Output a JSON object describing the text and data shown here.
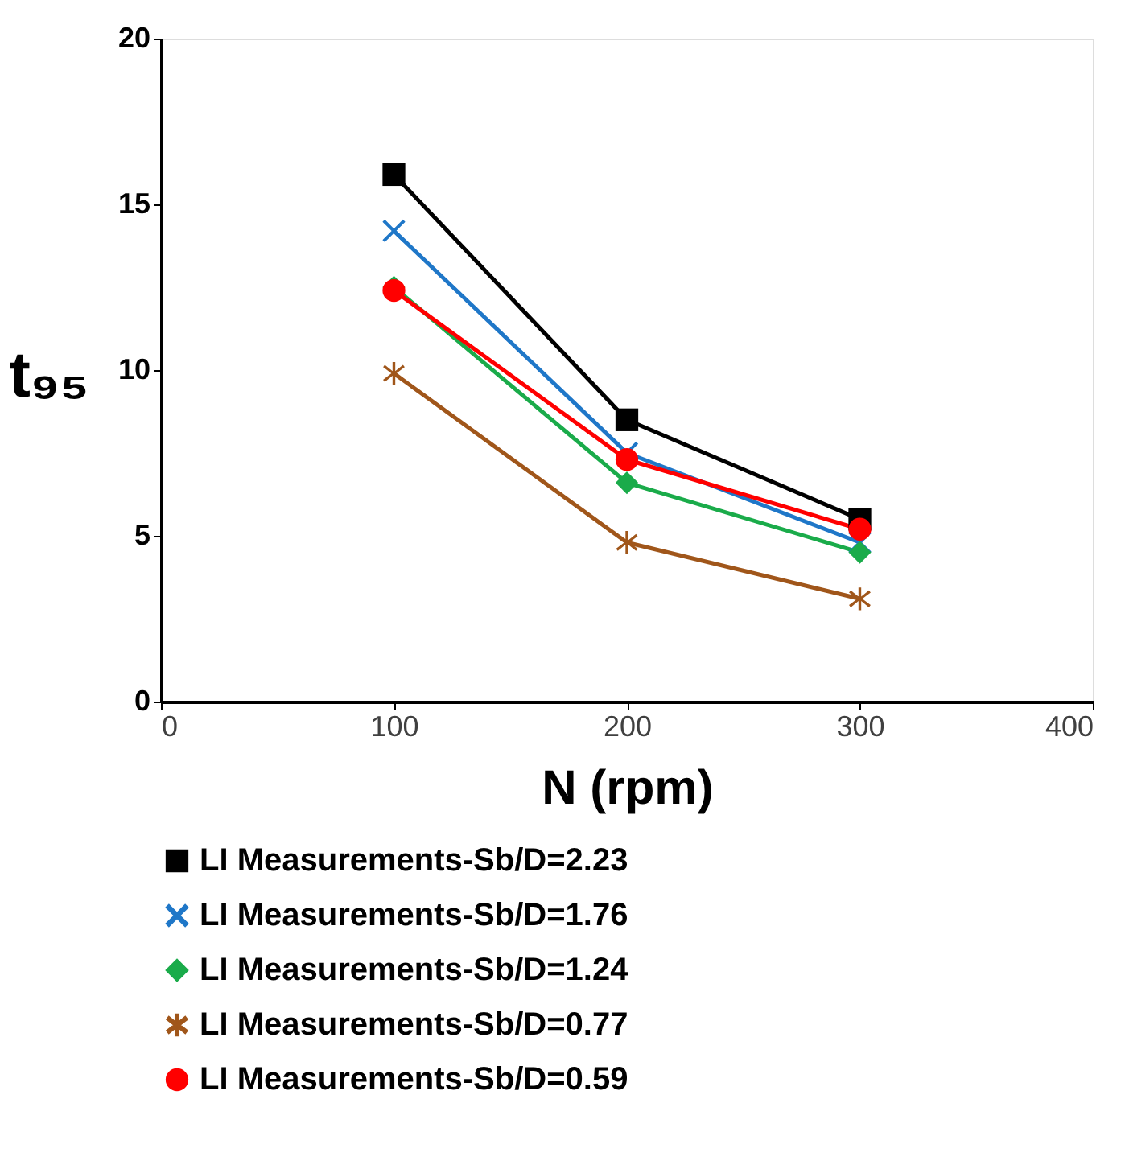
{
  "chart_data": {
    "type": "line",
    "xlabel": "N (rpm)",
    "ylabel": "t₉₅",
    "x": [
      100,
      200,
      300
    ],
    "xlim": [
      0,
      400
    ],
    "xticks": [
      0,
      100,
      200,
      300,
      400
    ],
    "ylim": [
      0,
      20
    ],
    "yticks": [
      0,
      5,
      10,
      15,
      20
    ],
    "grid": false,
    "legend": "bottom",
    "line_style": "solid",
    "series": [
      {
        "name": "LI Measurements-Sb/D=2.23",
        "color": "#000000",
        "marker": "square",
        "values": [
          15.9,
          8.5,
          5.5
        ]
      },
      {
        "name": "LI Measurements-Sb/D=1.76",
        "color": "#1f77c8",
        "marker": "cross",
        "values": [
          14.2,
          7.5,
          4.8
        ]
      },
      {
        "name": "LI Measurements-Sb/D=1.24",
        "color": "#1aab4a",
        "marker": "diamond",
        "values": [
          12.5,
          6.6,
          4.5
        ]
      },
      {
        "name": "LI Measurements-Sb/D=0.77",
        "color": "#a0561a",
        "marker": "star",
        "values": [
          9.9,
          4.8,
          3.1
        ]
      },
      {
        "name": "LI Measurements-Sb/D=0.59",
        "color": "#ff0000",
        "marker": "circle",
        "values": [
          12.4,
          7.3,
          5.2
        ]
      }
    ]
  }
}
